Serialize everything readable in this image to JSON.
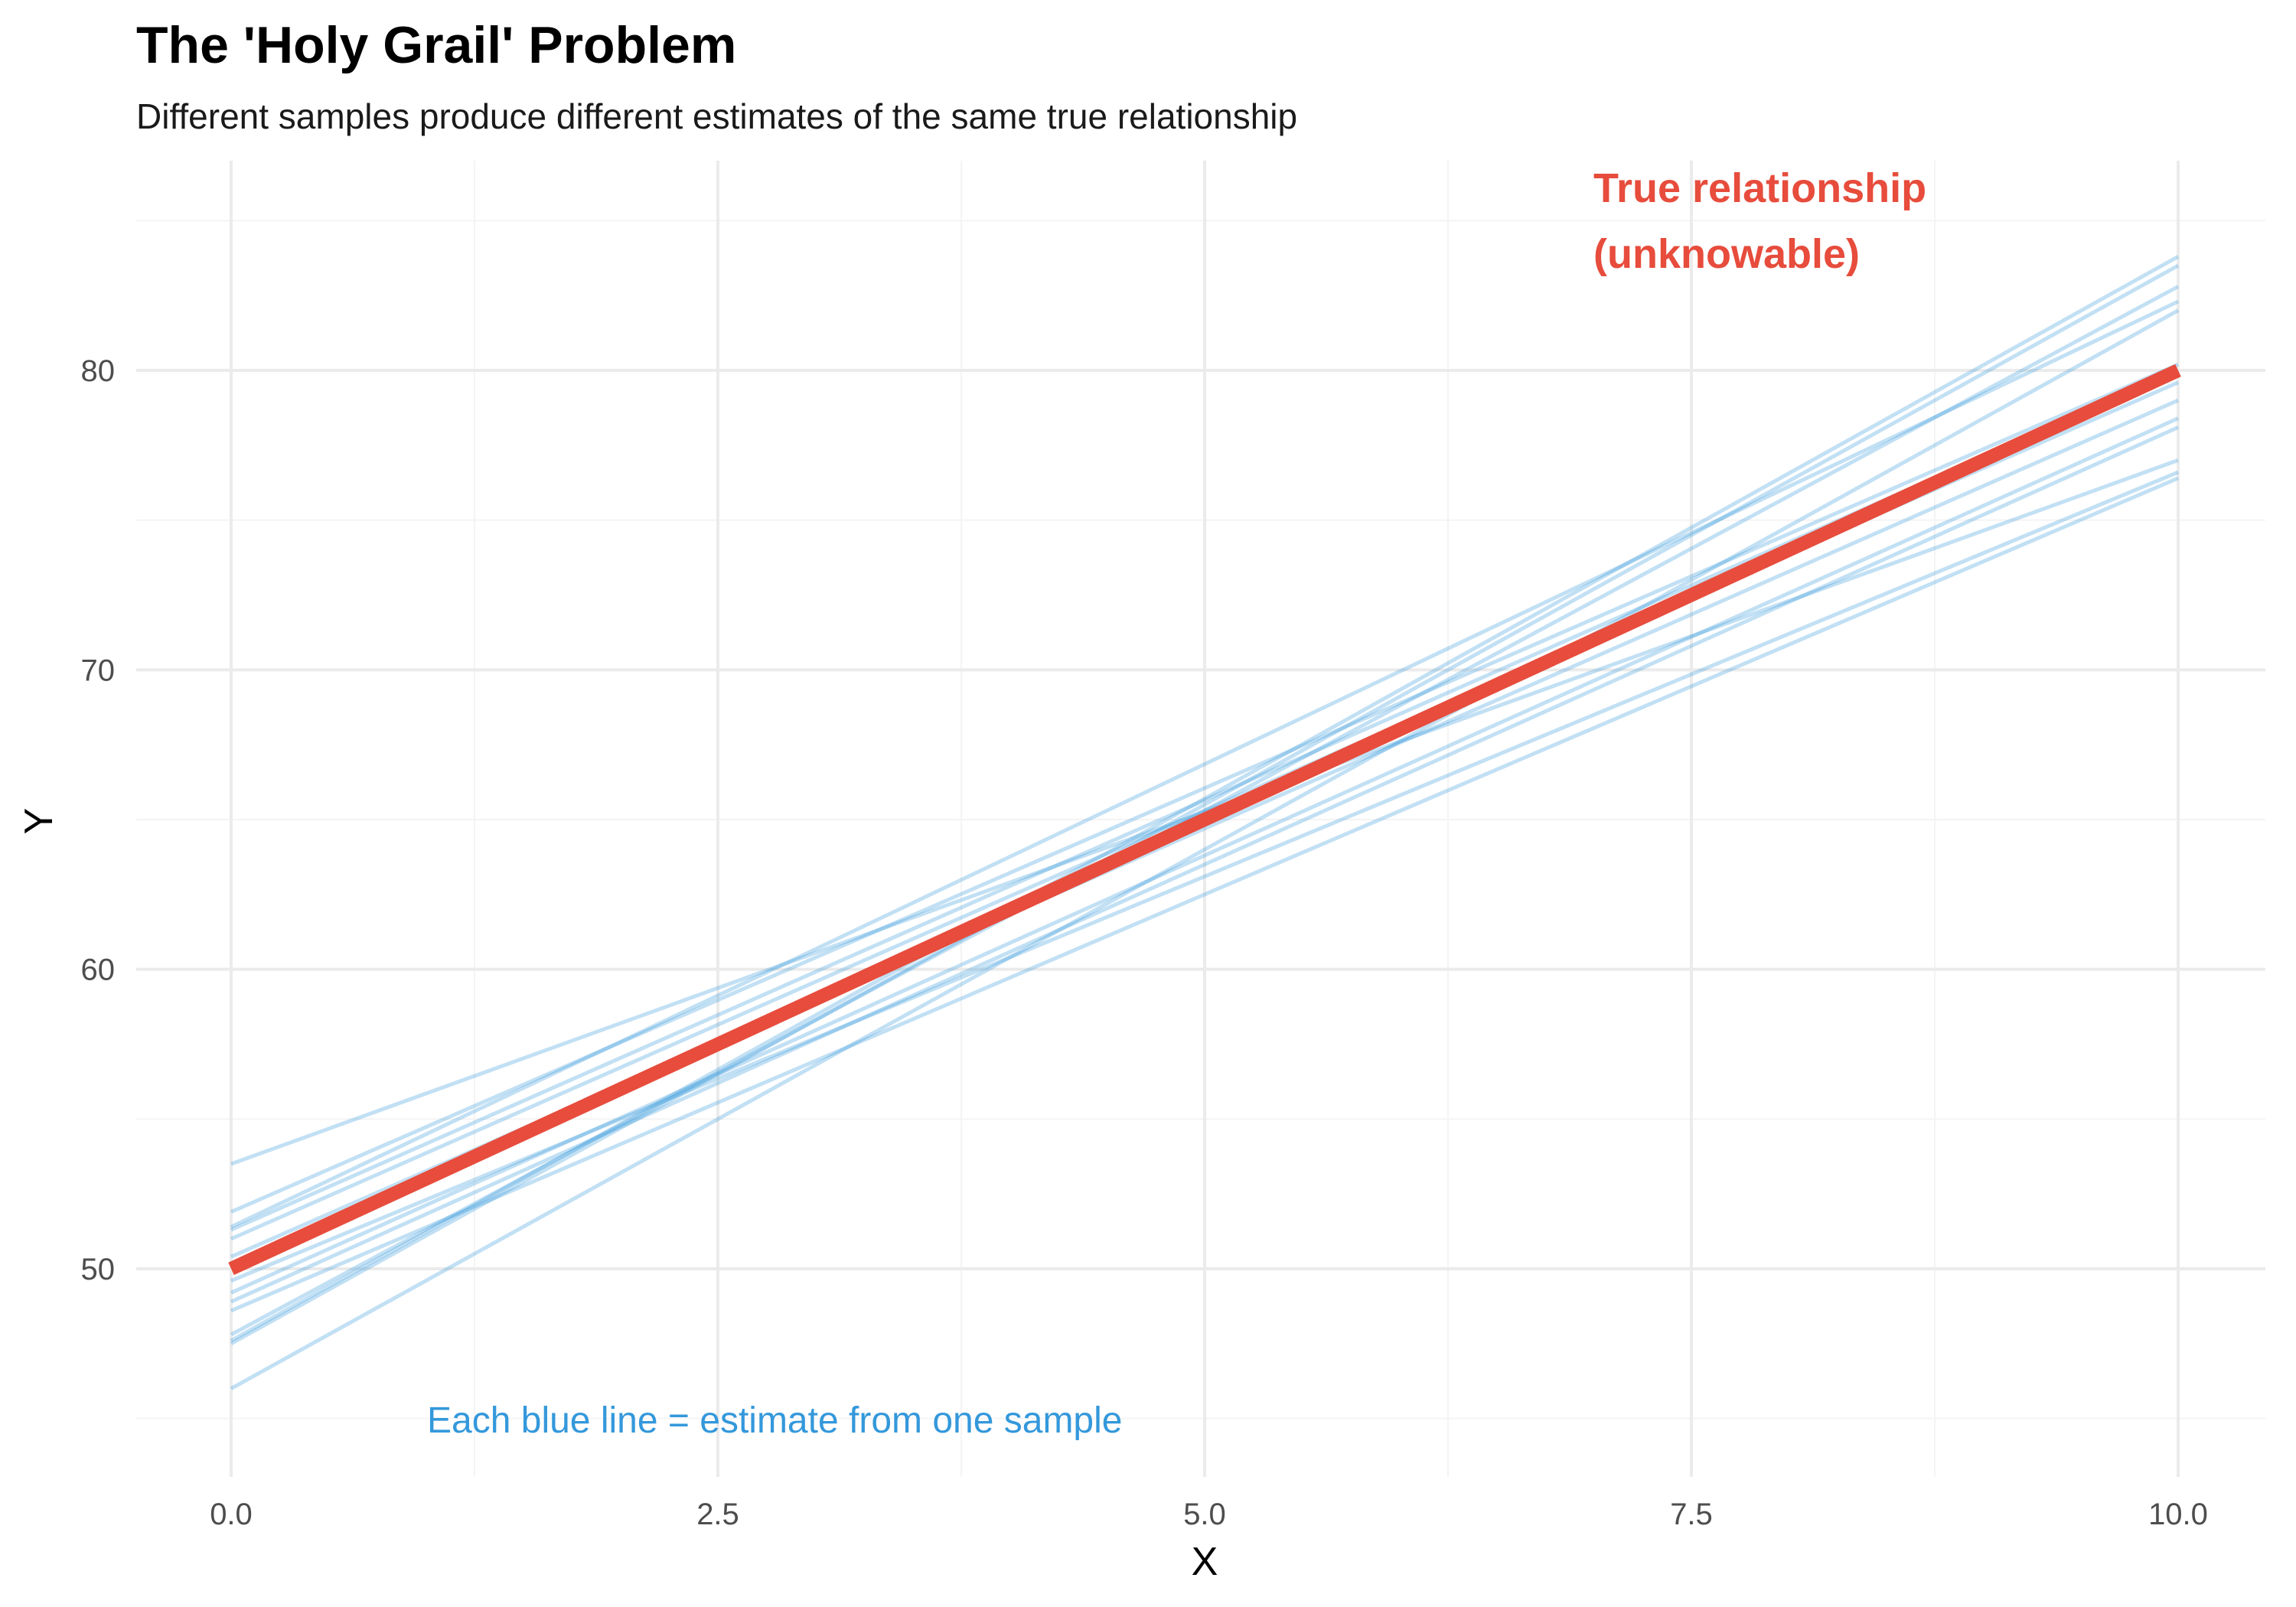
{
  "chart_data": {
    "type": "line",
    "title": "The 'Holy Grail' Problem",
    "subtitle": "Different samples produce different estimates of the same true relationship",
    "xlabel": "X",
    "ylabel": "Y",
    "xlim": [
      0,
      10
    ],
    "ylim": [
      43,
      87
    ],
    "x_ticks": [
      0,
      2.5,
      5,
      7.5,
      10
    ],
    "x_tick_labels": [
      "0.0",
      "2.5",
      "5.0",
      "7.5",
      "10.0"
    ],
    "y_ticks": [
      50,
      60,
      70,
      80
    ],
    "y_tick_labels": [
      "50",
      "60",
      "70",
      "80"
    ],
    "grid": true,
    "true_line": {
      "x": [
        0,
        10
      ],
      "y": [
        50,
        80
      ],
      "color": "#E74C3C"
    },
    "sample_lines": [
      {
        "x": [
          0,
          10
        ],
        "y": [
          53.5,
          77.0
        ]
      },
      {
        "x": [
          0,
          10
        ],
        "y": [
          51.9,
          80.2
        ]
      },
      {
        "x": [
          0,
          10
        ],
        "y": [
          51.4,
          82.3
        ]
      },
      {
        "x": [
          0,
          10
        ],
        "y": [
          51.3,
          80.0
        ]
      },
      {
        "x": [
          0,
          10
        ],
        "y": [
          51.0,
          79.6
        ]
      },
      {
        "x": [
          0,
          10
        ],
        "y": [
          50.4,
          79.0
        ]
      },
      {
        "x": [
          0,
          10
        ],
        "y": [
          49.6,
          76.6
        ]
      },
      {
        "x": [
          0,
          10
        ],
        "y": [
          49.2,
          78.4
        ]
      },
      {
        "x": [
          0,
          10
        ],
        "y": [
          48.9,
          78.1
        ]
      },
      {
        "x": [
          0,
          10
        ],
        "y": [
          48.6,
          76.4
        ]
      },
      {
        "x": [
          0,
          10
        ],
        "y": [
          47.8,
          82.8
        ]
      },
      {
        "x": [
          0,
          10
        ],
        "y": [
          47.6,
          83.8
        ]
      },
      {
        "x": [
          0,
          10
        ],
        "y": [
          47.5,
          83.5
        ]
      },
      {
        "x": [
          0,
          10
        ],
        "y": [
          46.0,
          82.0
        ]
      }
    ],
    "sample_color": "#3498DB",
    "annotations": {
      "true_label_line1": "True relationship",
      "true_label_line2": "(unknowable)",
      "true_label_color": "#E74C3C",
      "sample_label": "Each blue line = estimate from one sample",
      "sample_label_color": "#3498DB"
    }
  }
}
